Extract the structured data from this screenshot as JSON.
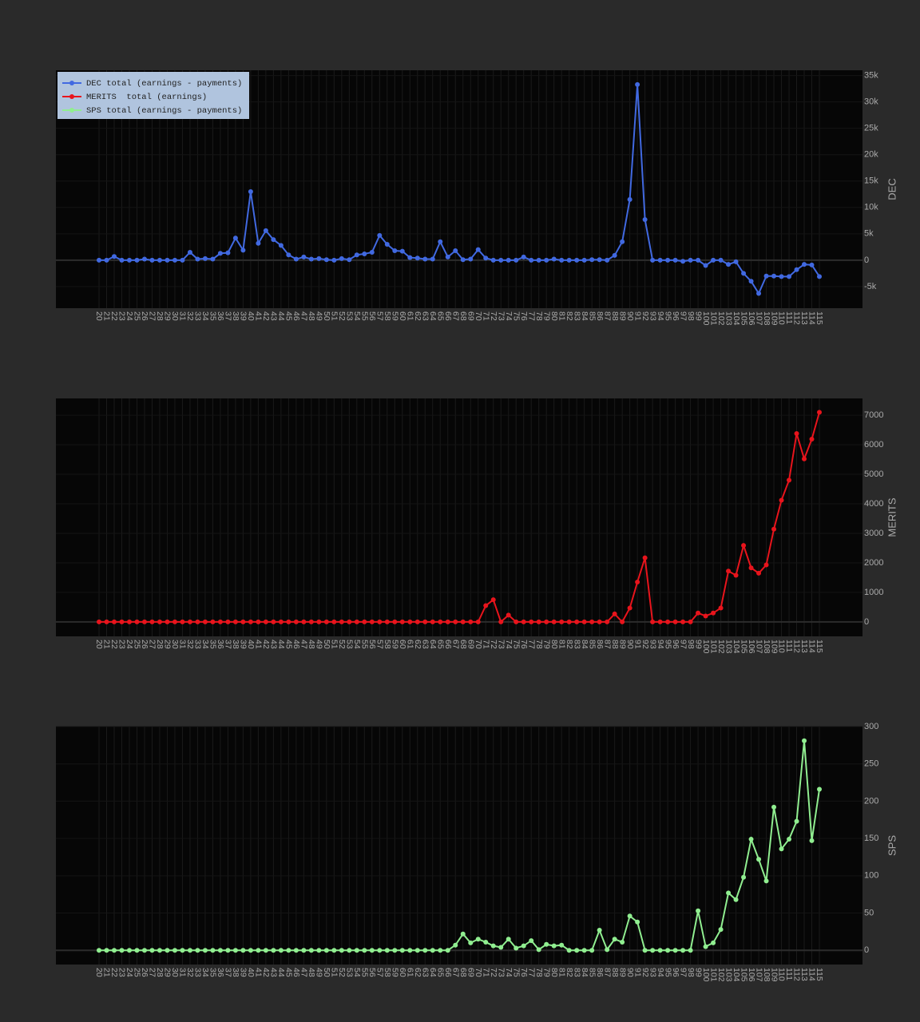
{
  "chart_data": [
    {
      "type": "line",
      "ylabel": "DEC",
      "legend": "top-left",
      "grid": true,
      "categories": [
        "20",
        "21",
        "22",
        "23",
        "24",
        "25",
        "26",
        "27",
        "28",
        "29",
        "30",
        "31",
        "32",
        "33",
        "34",
        "35",
        "36",
        "37",
        "38",
        "39",
        "40",
        "41",
        "42",
        "43",
        "44",
        "45",
        "46",
        "47",
        "48",
        "49",
        "50",
        "51",
        "52",
        "53",
        "54",
        "55",
        "56",
        "57",
        "58",
        "59",
        "60",
        "61",
        "62",
        "63",
        "64",
        "65",
        "66",
        "67",
        "68",
        "69",
        "70",
        "71",
        "72",
        "73",
        "74",
        "75",
        "76",
        "77",
        "78",
        "79",
        "80",
        "81",
        "82",
        "83",
        "84",
        "85",
        "86",
        "87",
        "88",
        "89",
        "90",
        "91",
        "92",
        "93",
        "94",
        "95",
        "96",
        "97",
        "98",
        "99",
        "100",
        "101",
        "102",
        "103",
        "104",
        "105",
        "106",
        "107",
        "108",
        "109",
        "110",
        "111",
        "112",
        "113",
        "114",
        "115"
      ],
      "series": [
        {
          "name": "DEC total (earnings - payments)",
          "color": "#4169e1",
          "values": [
            0,
            0,
            700,
            0,
            0,
            0,
            200,
            0,
            0,
            0,
            0,
            0,
            1500,
            200,
            300,
            200,
            1300,
            1400,
            4200,
            1900,
            13000,
            3200,
            5600,
            3900,
            2800,
            1000,
            200,
            600,
            200,
            300,
            100,
            0,
            300,
            100,
            1000,
            1200,
            1500,
            4700,
            3000,
            1800,
            1700,
            500,
            400,
            200,
            200,
            3500,
            600,
            1800,
            100,
            200,
            2000,
            400,
            0,
            0,
            0,
            0,
            600,
            0,
            0,
            0,
            200,
            0,
            0,
            0,
            0,
            100,
            100,
            0,
            900,
            3500,
            11500,
            33300,
            7700,
            0,
            0,
            0,
            0,
            -200,
            0,
            0,
            -1000,
            0,
            0,
            -800,
            -300,
            -2500,
            -4000,
            -6300,
            -3000,
            -3000,
            -3100,
            -3100,
            -1800,
            -800,
            -900,
            -3100
          ]
        }
      ],
      "ylim": [
        -9100,
        36000
      ],
      "yticks": [
        {
          "value": -5000,
          "label": "-5k"
        },
        0,
        {
          "value": 5000,
          "label": "5k"
        },
        {
          "value": 10000,
          "label": "10k"
        },
        {
          "value": 15000,
          "label": "15k"
        },
        {
          "value": 20000,
          "label": "20k"
        },
        {
          "value": 25000,
          "label": "25k"
        },
        {
          "value": 30000,
          "label": "30k"
        },
        {
          "value": 35000,
          "label": "35k"
        }
      ]
    },
    {
      "type": "line",
      "ylabel": "MERITS",
      "grid": true,
      "categories": [
        "20",
        "21",
        "22",
        "23",
        "24",
        "25",
        "26",
        "27",
        "28",
        "29",
        "30",
        "31",
        "32",
        "33",
        "34",
        "35",
        "36",
        "37",
        "38",
        "39",
        "40",
        "41",
        "42",
        "43",
        "44",
        "45",
        "46",
        "47",
        "48",
        "49",
        "50",
        "51",
        "52",
        "53",
        "54",
        "55",
        "56",
        "57",
        "58",
        "59",
        "60",
        "61",
        "62",
        "63",
        "64",
        "65",
        "66",
        "67",
        "68",
        "69",
        "70",
        "71",
        "72",
        "73",
        "74",
        "75",
        "76",
        "77",
        "78",
        "79",
        "80",
        "81",
        "82",
        "83",
        "84",
        "85",
        "86",
        "87",
        "88",
        "89",
        "90",
        "91",
        "92",
        "93",
        "94",
        "95",
        "96",
        "97",
        "98",
        "99",
        "100",
        "101",
        "102",
        "103",
        "104",
        "105",
        "106",
        "107",
        "108",
        "109",
        "110",
        "111",
        "112",
        "113",
        "114",
        "115"
      ],
      "series": [
        {
          "name": "MERITS  total (earnings)",
          "color": "#e8141c",
          "values": [
            0,
            0,
            0,
            0,
            0,
            0,
            0,
            0,
            0,
            0,
            0,
            0,
            0,
            0,
            0,
            0,
            0,
            0,
            0,
            0,
            0,
            0,
            0,
            0,
            0,
            0,
            0,
            0,
            0,
            0,
            0,
            0,
            0,
            0,
            0,
            0,
            0,
            0,
            0,
            0,
            0,
            0,
            0,
            0,
            0,
            0,
            0,
            0,
            0,
            0,
            0,
            550,
            750,
            0,
            230,
            0,
            0,
            0,
            0,
            0,
            0,
            0,
            0,
            0,
            0,
            0,
            0,
            0,
            270,
            0,
            470,
            1350,
            2170,
            0,
            0,
            0,
            0,
            0,
            0,
            300,
            200,
            300,
            470,
            1720,
            1580,
            2590,
            1830,
            1650,
            1930,
            3140,
            4120,
            4800,
            6380,
            5520,
            6190,
            7100
          ]
        }
      ],
      "ylim": [
        -490,
        7570
      ],
      "yticks": [
        0,
        1000,
        2000,
        3000,
        4000,
        5000,
        6000,
        7000
      ]
    },
    {
      "type": "line",
      "ylabel": "SPS",
      "grid": true,
      "categories": [
        "20",
        "21",
        "22",
        "23",
        "24",
        "25",
        "26",
        "27",
        "28",
        "29",
        "30",
        "31",
        "32",
        "33",
        "34",
        "35",
        "36",
        "37",
        "38",
        "39",
        "40",
        "41",
        "42",
        "43",
        "44",
        "45",
        "46",
        "47",
        "48",
        "49",
        "50",
        "51",
        "52",
        "53",
        "54",
        "55",
        "56",
        "57",
        "58",
        "59",
        "60",
        "61",
        "62",
        "63",
        "64",
        "65",
        "66",
        "67",
        "68",
        "69",
        "70",
        "71",
        "72",
        "73",
        "74",
        "75",
        "76",
        "77",
        "78",
        "79",
        "80",
        "81",
        "82",
        "83",
        "84",
        "85",
        "86",
        "87",
        "88",
        "89",
        "90",
        "91",
        "92",
        "93",
        "94",
        "95",
        "96",
        "97",
        "98",
        "99",
        "100",
        "101",
        "102",
        "103",
        "104",
        "105",
        "106",
        "107",
        "108",
        "109",
        "110",
        "111",
        "112",
        "113",
        "114",
        "115"
      ],
      "series": [
        {
          "name": "SPS total (earnings - payments)",
          "color": "#90ee90",
          "values": [
            0,
            0,
            0,
            0,
            0,
            0,
            0,
            0,
            0,
            0,
            0,
            0,
            0,
            0,
            0,
            0,
            0,
            0,
            0,
            0,
            0,
            0,
            0,
            0,
            0,
            0,
            0,
            0,
            0,
            0,
            0,
            0,
            0,
            0,
            0,
            0,
            0,
            0,
            0,
            0,
            0,
            0,
            0,
            0,
            0,
            0,
            0,
            7,
            22,
            10,
            15,
            11,
            6,
            4,
            15,
            3,
            6,
            13,
            1,
            8,
            6,
            7,
            0,
            0,
            0,
            0,
            27,
            1,
            15,
            11,
            46,
            38,
            0,
            0,
            0,
            0,
            0,
            0,
            0,
            53,
            5,
            10,
            28,
            77,
            68,
            98,
            149,
            122,
            93,
            192,
            136,
            149,
            173,
            281,
            147,
            216
          ]
        }
      ],
      "ylim": [
        -19,
        300
      ],
      "yticks": [
        0,
        50,
        100,
        150,
        200,
        250,
        300
      ]
    }
  ]
}
